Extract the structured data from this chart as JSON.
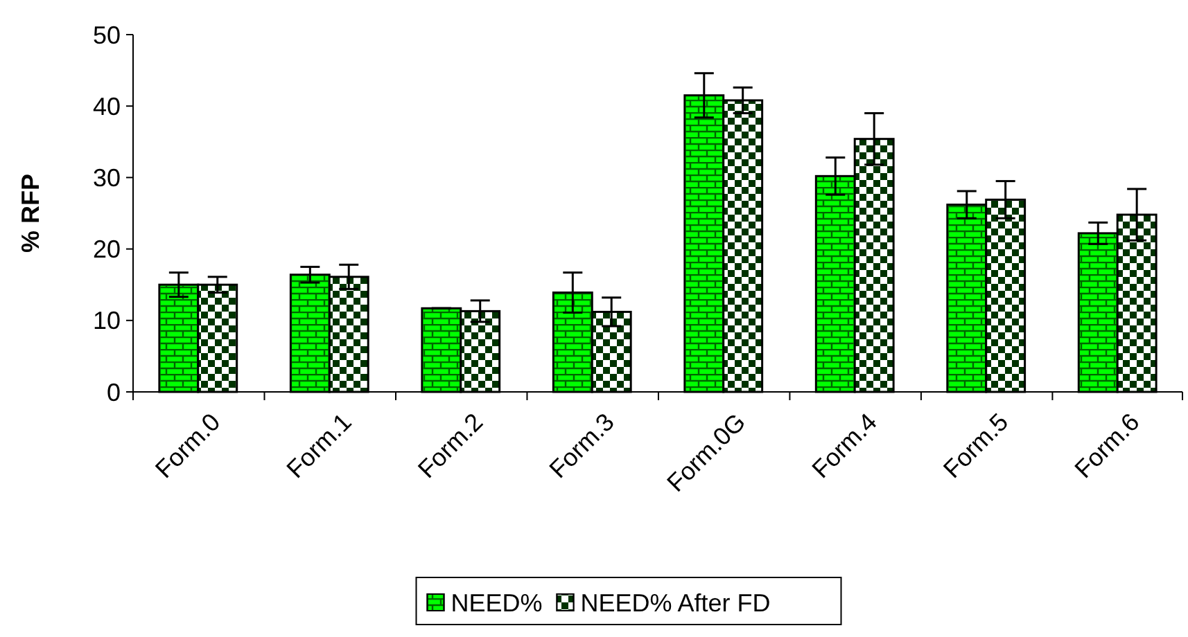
{
  "chart_data": {
    "type": "bar",
    "ylabel": "% RFP",
    "categories": [
      "Form.0",
      "Form.1",
      "Form.2",
      "Form.3",
      "Form.0G",
      "Form.4",
      "Form.5",
      "Form.6"
    ],
    "series": [
      {
        "name": "NEED%",
        "color": "#00ff00",
        "values": [
          15.0,
          16.4,
          11.7,
          13.9,
          41.5,
          30.2,
          26.2,
          22.2
        ],
        "errors": [
          1.7,
          1.1,
          0,
          2.8,
          3.1,
          2.6,
          1.9,
          1.5
        ]
      },
      {
        "name": "NEED% After FD",
        "color": "#003300",
        "values": [
          15.0,
          16.1,
          11.3,
          11.2,
          40.8,
          35.4,
          26.9,
          24.8
        ],
        "errors": [
          1.1,
          1.7,
          1.5,
          2.0,
          1.8,
          3.6,
          2.6,
          3.6
        ]
      }
    ],
    "ylim": [
      0,
      50
    ],
    "yticks": [
      0,
      10,
      20,
      30,
      40,
      50
    ],
    "grid": false,
    "legend": "bottom"
  }
}
